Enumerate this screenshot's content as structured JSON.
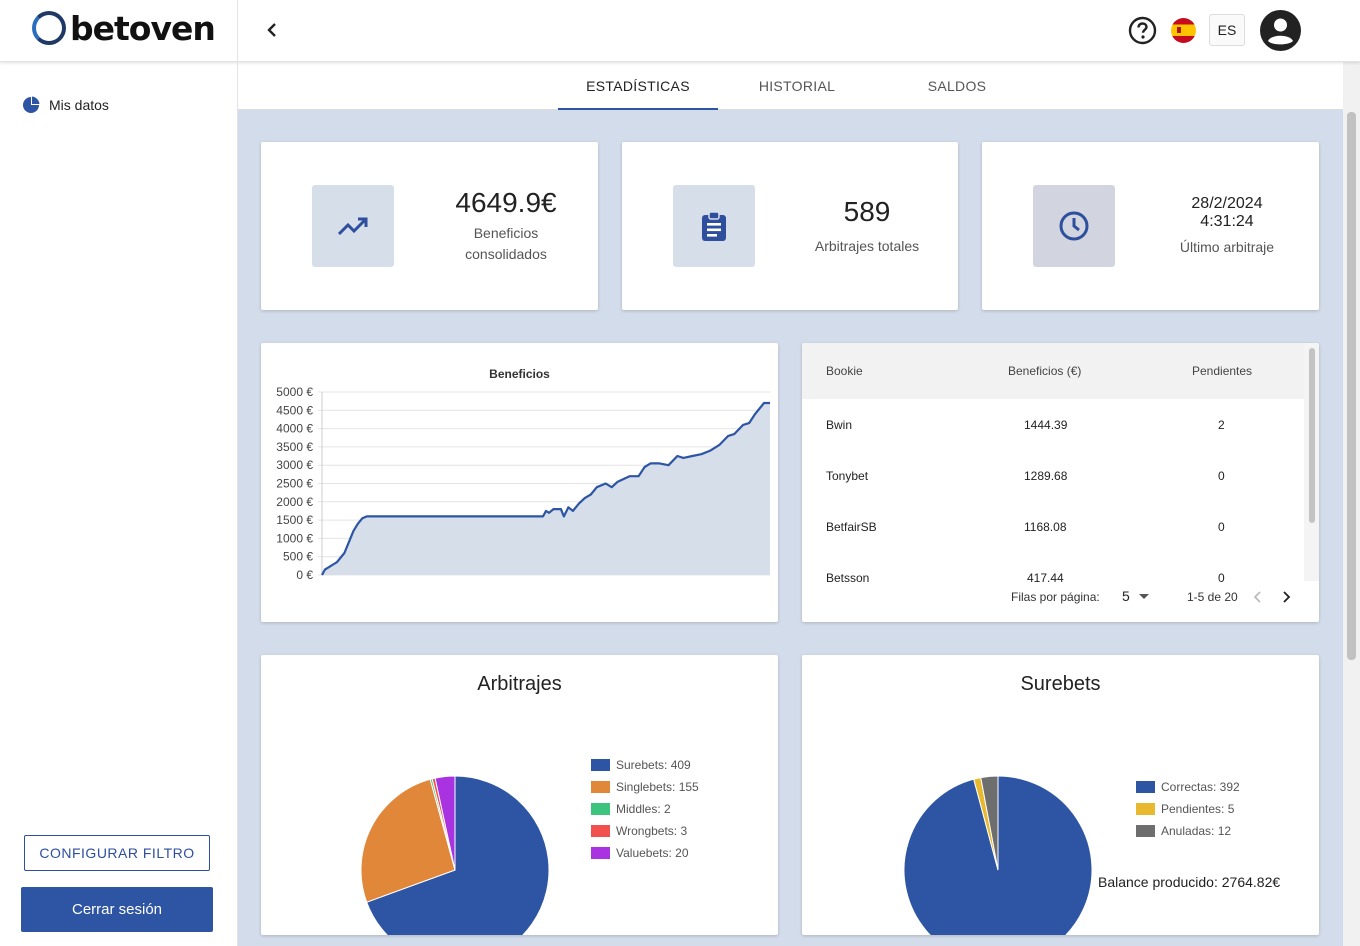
{
  "brand": {
    "name": "betoven"
  },
  "header": {
    "language": "ES",
    "help_icon": "help-circle-icon",
    "flag_icon": "spain-flag-icon",
    "user_icon": "account-circle-icon",
    "back_icon": "chevron-left-icon"
  },
  "sidebar": {
    "items": [
      {
        "label": "Mis datos",
        "icon": "pie-chart-icon"
      }
    ],
    "filter_button": "CONFIGURAR FILTRO",
    "logout_button": "Cerrar sesión"
  },
  "tabs": [
    {
      "label": "ESTADÍSTICAS",
      "active": true
    },
    {
      "label": "HISTORIAL",
      "active": false
    },
    {
      "label": "SALDOS",
      "active": false
    }
  ],
  "stats": {
    "profit": {
      "value": "4649.9€",
      "label_line1": "Beneficios",
      "label_line2": "consolidados",
      "icon": "trending-up-icon"
    },
    "total": {
      "value": "589",
      "label": "Arbitrajes totales",
      "icon": "clipboard-list-icon"
    },
    "last": {
      "date": "28/2/2024",
      "time": "4:31:24",
      "label": "Último arbitraje",
      "icon": "clock-icon"
    }
  },
  "colors": {
    "accent": "#2d55a4",
    "line": "#2d55a4",
    "area": "#d6deea",
    "surebets": "#2d55a4",
    "singlebets": "#e0873a",
    "middles": "#3cc47c",
    "wrongbets": "#f24f4f",
    "valuebets": "#a933e0",
    "correctas": "#2d55a4",
    "pendientes": "#e8b82e",
    "anuladas": "#6e6e6e"
  },
  "chart_data": [
    {
      "type": "area",
      "title": "Beneficios",
      "xlabel": "",
      "ylabel": "",
      "ylim": [
        0,
        5000
      ],
      "yticks": [
        "0 €",
        "500 €",
        "1000 €",
        "1500 €",
        "2000 €",
        "2500 €",
        "3000 €",
        "3500 €",
        "4000 €",
        "4500 €",
        "5000 €"
      ],
      "grid": true,
      "x": [
        0,
        2,
        4,
        6,
        8,
        10,
        12,
        15,
        18,
        21,
        24,
        27,
        30,
        40,
        60,
        80,
        100,
        120,
        140,
        148,
        150,
        152,
        155,
        160,
        162,
        165,
        168,
        172,
        176,
        180,
        184,
        190,
        194,
        198,
        206,
        212,
        216,
        220,
        226,
        232,
        238,
        242,
        248,
        254,
        260,
        266,
        272,
        276,
        282,
        286,
        290,
        296,
        300
      ],
      "y": [
        0,
        150,
        200,
        250,
        300,
        350,
        450,
        600,
        900,
        1200,
        1400,
        1550,
        1600,
        1600,
        1600,
        1600,
        1600,
        1600,
        1600,
        1600,
        1750,
        1700,
        1800,
        1800,
        1600,
        1850,
        1750,
        1950,
        2100,
        2200,
        2400,
        2500,
        2400,
        2550,
        2700,
        2700,
        2950,
        3050,
        3050,
        3000,
        3250,
        3200,
        3250,
        3300,
        3400,
        3550,
        3800,
        3850,
        4100,
        4150,
        4400,
        4700,
        4700
      ]
    },
    {
      "type": "pie",
      "title": "Arbitrajes",
      "series": [
        {
          "name": "Surebets",
          "value": 409,
          "label": "Surebets: 409",
          "color": "#2d55a4"
        },
        {
          "name": "Singlebets",
          "value": 155,
          "label": "Singlebets: 155",
          "color": "#e0873a"
        },
        {
          "name": "Middles",
          "value": 2,
          "label": "Middles: 2",
          "color": "#3cc47c"
        },
        {
          "name": "Wrongbets",
          "value": 3,
          "label": "Wrongbets: 3",
          "color": "#f24f4f"
        },
        {
          "name": "Valuebets",
          "value": 20,
          "label": "Valuebets: 20",
          "color": "#a933e0"
        }
      ]
    },
    {
      "type": "pie",
      "title": "Surebets",
      "series": [
        {
          "name": "Correctas",
          "value": 392,
          "label": "Correctas: 392",
          "color": "#2d55a4"
        },
        {
          "name": "Pendientes",
          "value": 5,
          "label": "Pendientes: 5",
          "color": "#e8b82e"
        },
        {
          "name": "Anuladas",
          "value": 12,
          "label": "Anuladas: 12",
          "color": "#6e6e6e"
        }
      ],
      "footer": "Balance producido: 2764.82€"
    }
  ],
  "table": {
    "headers": [
      "Bookie",
      "Beneficios (€)",
      "Pendientes"
    ],
    "rows": [
      [
        "Bwin",
        "1444.39",
        "2"
      ],
      [
        "Tonybet",
        "1289.68",
        "0"
      ],
      [
        "BetfairSB",
        "1168.08",
        "0"
      ],
      [
        "Betsson",
        "417.44",
        "0"
      ]
    ],
    "rows_per_page_label": "Filas por página:",
    "rows_per_page": "5",
    "range": "1-5 de 20"
  }
}
